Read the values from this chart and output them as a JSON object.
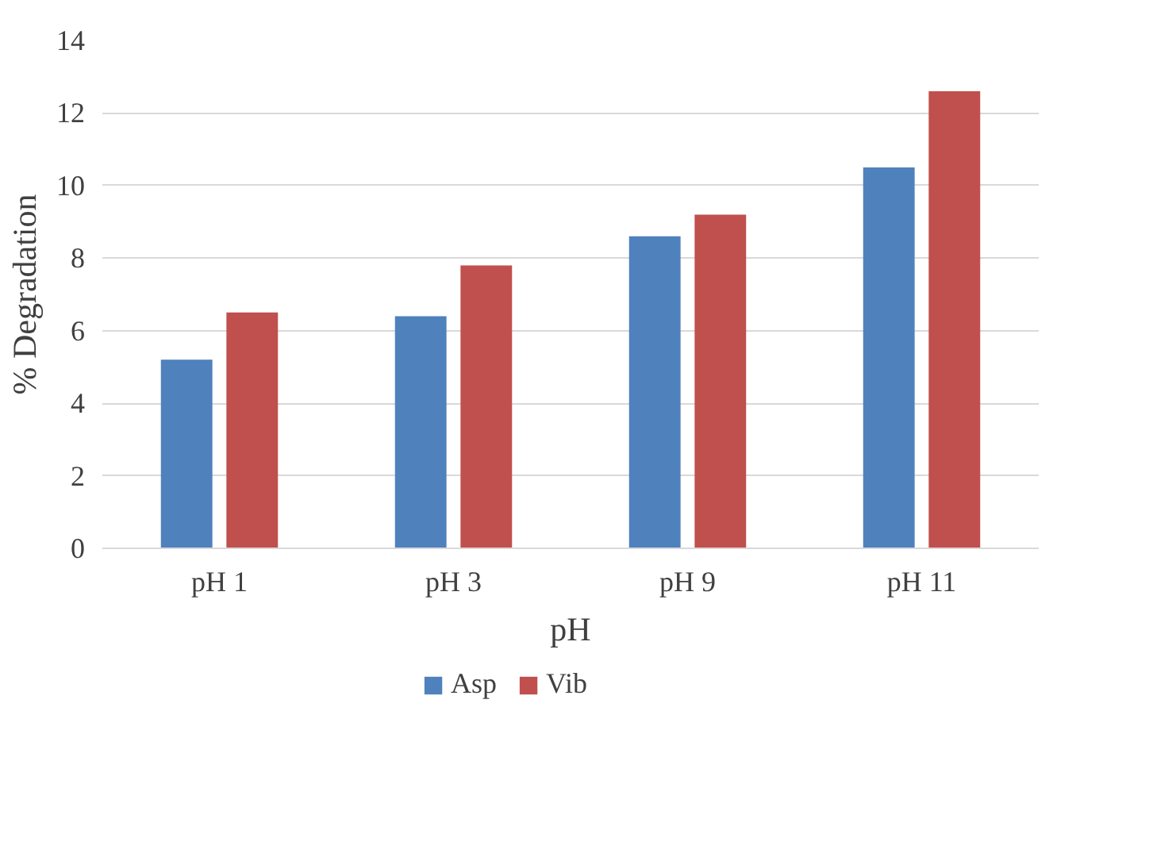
{
  "chart_data": {
    "type": "bar",
    "xlabel": "pH",
    "ylabel": "% Degradation",
    "categories": [
      "pH 1",
      "pH 3",
      "pH 9",
      "pH 11"
    ],
    "series": [
      {
        "name": "Asp",
        "color": "#4f81bd",
        "values": [
          5.2,
          6.4,
          8.6,
          10.5
        ]
      },
      {
        "name": "Vib",
        "color": "#c0504d",
        "values": [
          6.5,
          7.8,
          9.2,
          12.6
        ]
      }
    ],
    "ylim": [
      0,
      14
    ],
    "yticks": [
      0,
      2,
      4,
      6,
      8,
      10,
      12,
      14
    ],
    "grid": "y",
    "legend": "bottom"
  }
}
